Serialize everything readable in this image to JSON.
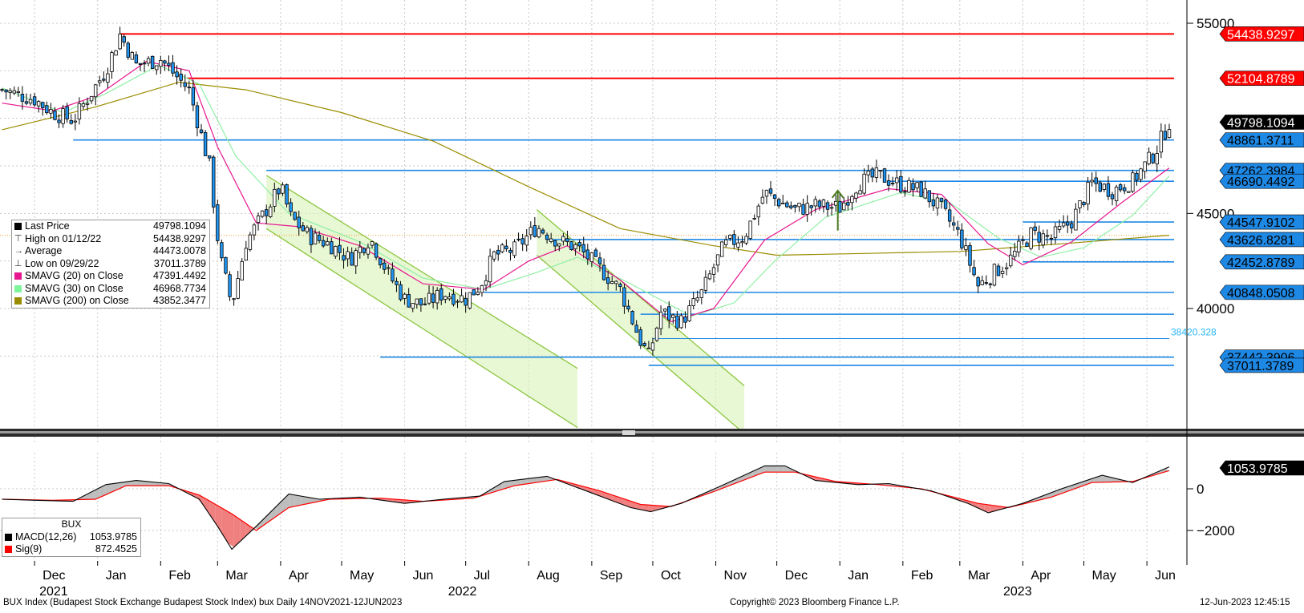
{
  "footer": {
    "description": "BUX Index (Budapest Stock Exchange Budapest Stock Index) bux  Daily 14NOV2021-12JUN2023",
    "copyright": "Copyright© 2023 Bloomberg Finance L.P.",
    "timestamp": "12-Jun-2023 12:45:15"
  },
  "legend_main": {
    "items": [
      {
        "glyph": "swatch",
        "color": "#000000",
        "label": "Last Price",
        "value": "49798.1094"
      },
      {
        "glyph": "⊤",
        "color": "#333333",
        "label": "High on 01/12/22",
        "value": "54438.9297"
      },
      {
        "glyph": "→",
        "color": "#333333",
        "label": "Average",
        "value": "44473.0078"
      },
      {
        "glyph": "⊥",
        "color": "#333333",
        "label": "Low on 09/29/22",
        "value": "37011.3789"
      },
      {
        "glyph": "swatch",
        "color": "#e6178f",
        "label": "SMAVG (20)  on Close",
        "value": "47391.4492"
      },
      {
        "glyph": "swatch",
        "color": "#7ef59a",
        "label": "SMAVG (30)  on Close",
        "value": "46968.7734"
      },
      {
        "glyph": "swatch",
        "color": "#9a8c00",
        "label": "SMAVG (200)  on Close",
        "value": "43852.3477"
      }
    ]
  },
  "legend_macd": {
    "title": "BUX",
    "items": [
      {
        "color": "#000000",
        "label": "MACD(12,26)",
        "value": "1053.9785"
      },
      {
        "color": "#ff0000",
        "label": "Sig(9)",
        "value": "872.4525"
      }
    ]
  },
  "chart_data": [
    {
      "type": "candlestick",
      "title": "BUX Index",
      "y_ticks": [
        "55000",
        "45000",
        "40000"
      ],
      "x_ticks": [
        {
          "label": "Dec",
          "date": "2021-12-01"
        },
        {
          "label": "Jan",
          "date": "2022-01-01"
        },
        {
          "label": "Feb",
          "date": "2022-02-01"
        },
        {
          "label": "Mar",
          "date": "2022-03-01"
        },
        {
          "label": "Apr",
          "date": "2022-04-01"
        },
        {
          "label": "May",
          "date": "2022-05-01"
        },
        {
          "label": "Jun",
          "date": "2022-06-01"
        },
        {
          "label": "Jul",
          "date": "2022-07-01"
        },
        {
          "label": "Aug",
          "date": "2022-08-01"
        },
        {
          "label": "Sep",
          "date": "2022-09-01"
        },
        {
          "label": "Oct",
          "date": "2022-10-01"
        },
        {
          "label": "Nov",
          "date": "2022-11-01"
        },
        {
          "label": "Dec",
          "date": "2022-12-01"
        },
        {
          "label": "Jan",
          "date": "2023-01-01"
        },
        {
          "label": "Feb",
          "date": "2023-02-01"
        },
        {
          "label": "Mar",
          "date": "2023-03-01"
        },
        {
          "label": "Apr",
          "date": "2023-04-01"
        },
        {
          "label": "May",
          "date": "2023-05-01"
        },
        {
          "label": "Jun",
          "date": "2023-06-01"
        }
      ],
      "year_labels": [
        {
          "label": "2021",
          "date": "2021-12-01"
        },
        {
          "label": "2022",
          "date": "2022-06-20"
        },
        {
          "label": "2023",
          "date": "2023-03-20"
        }
      ],
      "x_range": [
        "2021-11-14",
        "2023-06-12"
      ],
      "close_series": [
        [
          "2021-11-15",
          51500
        ],
        [
          "2021-12-01",
          51000
        ],
        [
          "2021-12-10",
          50300
        ],
        [
          "2021-12-20",
          49900
        ],
        [
          "2022-01-05",
          52500
        ],
        [
          "2022-01-12",
          54400
        ],
        [
          "2022-01-20",
          52800
        ],
        [
          "2022-02-01",
          53100
        ],
        [
          "2022-02-15",
          51500
        ],
        [
          "2022-02-25",
          47500
        ],
        [
          "2022-03-02",
          42800
        ],
        [
          "2022-03-08",
          40200
        ],
        [
          "2022-03-15",
          43500
        ],
        [
          "2022-03-25",
          45200
        ],
        [
          "2022-04-01",
          46400
        ],
        [
          "2022-04-06",
          44800
        ],
        [
          "2022-04-15",
          43800
        ],
        [
          "2022-04-25",
          43400
        ],
        [
          "2022-05-05",
          42600
        ],
        [
          "2022-05-15",
          43700
        ],
        [
          "2022-05-24",
          41800
        ],
        [
          "2022-06-01",
          40500
        ],
        [
          "2022-06-10",
          40200
        ],
        [
          "2022-06-20",
          40800
        ],
        [
          "2022-07-01",
          40500
        ],
        [
          "2022-07-08",
          41200
        ],
        [
          "2022-07-15",
          42800
        ],
        [
          "2022-07-25",
          43100
        ],
        [
          "2022-08-05",
          44300
        ],
        [
          "2022-08-15",
          43600
        ],
        [
          "2022-08-25",
          43200
        ],
        [
          "2022-09-05",
          42100
        ],
        [
          "2022-09-15",
          41000
        ],
        [
          "2022-09-25",
          38300
        ],
        [
          "2022-09-29",
          37500
        ],
        [
          "2022-10-05",
          39800
        ],
        [
          "2022-10-15",
          39300
        ],
        [
          "2022-10-25",
          40800
        ],
        [
          "2022-11-05",
          43300
        ],
        [
          "2022-11-15",
          43800
        ],
        [
          "2022-11-25",
          46100
        ],
        [
          "2022-12-01",
          45700
        ],
        [
          "2022-12-10",
          45200
        ],
        [
          "2022-12-20",
          45400
        ],
        [
          "2023-01-01",
          45300
        ],
        [
          "2023-01-10",
          46600
        ],
        [
          "2023-01-20",
          47000
        ],
        [
          "2023-01-31",
          46500
        ],
        [
          "2023-02-10",
          46200
        ],
        [
          "2023-02-20",
          45200
        ],
        [
          "2023-03-01",
          43800
        ],
        [
          "2023-03-10",
          41200
        ],
        [
          "2023-03-18",
          41900
        ],
        [
          "2023-03-25",
          42500
        ],
        [
          "2023-04-05",
          43900
        ],
        [
          "2023-04-15",
          43700
        ],
        [
          "2023-04-25",
          44600
        ],
        [
          "2023-05-05",
          46600
        ],
        [
          "2023-05-15",
          46200
        ],
        [
          "2023-05-25",
          46700
        ],
        [
          "2023-06-05",
          48200
        ],
        [
          "2023-06-12",
          49798
        ]
      ],
      "sma20": [
        [
          "2021-11-15",
          50800
        ],
        [
          "2021-12-10",
          50400
        ],
        [
          "2022-01-01",
          51200
        ],
        [
          "2022-01-25",
          53000
        ],
        [
          "2022-02-15",
          52500
        ],
        [
          "2022-03-01",
          48500
        ],
        [
          "2022-03-20",
          44500
        ],
        [
          "2022-04-10",
          44300
        ],
        [
          "2022-05-10",
          43300
        ],
        [
          "2022-06-10",
          41300
        ],
        [
          "2022-07-10",
          41000
        ],
        [
          "2022-08-01",
          42500
        ],
        [
          "2022-08-20",
          43300
        ],
        [
          "2022-09-15",
          41500
        ],
        [
          "2022-10-10",
          39300
        ],
        [
          "2022-10-31",
          40000
        ],
        [
          "2022-11-25",
          43600
        ],
        [
          "2022-12-20",
          45200
        ],
        [
          "2023-01-25",
          46300
        ],
        [
          "2023-02-20",
          46000
        ],
        [
          "2023-03-15",
          43400
        ],
        [
          "2023-04-01",
          42300
        ],
        [
          "2023-04-25",
          43500
        ],
        [
          "2023-05-20",
          45600
        ],
        [
          "2023-06-12",
          47391
        ]
      ],
      "sma30": [
        [
          "2021-11-15",
          51600
        ],
        [
          "2021-12-15",
          50300
        ],
        [
          "2022-01-05",
          51300
        ],
        [
          "2022-01-31",
          52800
        ],
        [
          "2022-02-20",
          51800
        ],
        [
          "2022-03-10",
          48000
        ],
        [
          "2022-04-05",
          45000
        ],
        [
          "2022-05-10",
          43500
        ],
        [
          "2022-06-10",
          41600
        ],
        [
          "2022-07-10",
          41000
        ],
        [
          "2022-08-05",
          41900
        ],
        [
          "2022-08-25",
          42700
        ],
        [
          "2022-09-20",
          41300
        ],
        [
          "2022-10-20",
          39600
        ],
        [
          "2022-11-10",
          40300
        ],
        [
          "2022-11-30",
          42500
        ],
        [
          "2022-12-25",
          44800
        ],
        [
          "2023-01-31",
          46100
        ],
        [
          "2023-02-25",
          45500
        ],
        [
          "2023-03-20",
          43700
        ],
        [
          "2023-04-10",
          42700
        ],
        [
          "2023-05-01",
          43200
        ],
        [
          "2023-05-25",
          44900
        ],
        [
          "2023-06-12",
          46969
        ]
      ],
      "sma200": [
        [
          "2021-11-15",
          49400
        ],
        [
          "2021-12-31",
          50600
        ],
        [
          "2022-02-10",
          51900
        ],
        [
          "2022-03-15",
          51500
        ],
        [
          "2022-05-01",
          50300
        ],
        [
          "2022-06-15",
          48800
        ],
        [
          "2022-08-01",
          46400
        ],
        [
          "2022-09-15",
          44200
        ],
        [
          "2022-10-31",
          43300
        ],
        [
          "2022-12-01",
          42800
        ],
        [
          "2023-01-15",
          42900
        ],
        [
          "2023-03-01",
          43000
        ],
        [
          "2023-04-20",
          43400
        ],
        [
          "2023-06-12",
          43852
        ]
      ],
      "horizontal_levels": [
        {
          "value": 54438.9297,
          "label": "54438.9297",
          "color": "#ff0000",
          "from": "2022-01-12"
        },
        {
          "value": 52104.8789,
          "label": "52104.8789",
          "color": "#ff0000",
          "from": "2022-02-14"
        },
        {
          "value": 48861.3711,
          "label": "48861.3711",
          "color": "#1e88e5",
          "from": "2021-12-20"
        },
        {
          "value": 47262.3984,
          "label": "47262.3984",
          "color": "#1e88e5",
          "from": "2022-03-25"
        },
        {
          "value": 46690.4492,
          "label": "46690.4492",
          "color": "#1e88e5",
          "from": "2023-01-25"
        },
        {
          "value": 44547.9102,
          "label": "44547.9102",
          "color": "#1e88e5",
          "from": "2023-04-01"
        },
        {
          "value": 43626.8281,
          "label": "43626.8281",
          "color": "#1e88e5",
          "from": "2022-08-10"
        },
        {
          "value": 42452.8789,
          "label": "42452.8789",
          "color": "#1e88e5",
          "from": "2023-04-01"
        },
        {
          "value": 40848.0508,
          "label": "40848.0508",
          "color": "#1e88e5",
          "from": "2022-07-10"
        },
        {
          "value": 39700,
          "label": "",
          "color": "#1e88e5",
          "from": "2022-09-25"
        },
        {
          "value": 38420.328,
          "label": "38420.328",
          "color": "#1e88e5",
          "from": "2022-10-01",
          "style": "plain"
        },
        {
          "value": 37442.3906,
          "label": "37442.3906",
          "color": "#1e88e5",
          "from": "2022-05-20"
        },
        {
          "value": 37011.3789,
          "label": "37011.3789",
          "color": "#1e88e5",
          "from": "2022-09-29"
        }
      ],
      "last_price": {
        "value": 49798.1094,
        "label": "49798.1094"
      },
      "channels": [
        {
          "upper": [
            [
              "2022-03-25",
              47000
            ],
            [
              "2022-07-01",
              40500
            ]
          ],
          "lower": [
            [
              "2022-03-25",
              44200
            ],
            [
              "2022-07-01",
              37500
            ]
          ],
          "extend_to": "2022-08-25"
        },
        {
          "upper": [
            [
              "2022-08-05",
              45200
            ],
            [
              "2022-10-31",
              37300
            ]
          ],
          "lower": [
            [
              "2022-08-05",
              42800
            ],
            [
              "2022-10-31",
              34800
            ]
          ],
          "extend_to": "2022-11-15"
        }
      ],
      "arrow": {
        "date": "2022-12-31",
        "from": 44100,
        "to": 46200,
        "color": "#4a7a1f"
      }
    },
    {
      "type": "line",
      "title": "MACD",
      "y_ticks": [
        "0",
        "-2000"
      ],
      "macd": [
        [
          "2021-11-15",
          -500
        ],
        [
          "2021-12-01",
          -550
        ],
        [
          "2021-12-20",
          -600
        ],
        [
          "2022-01-05",
          200
        ],
        [
          "2022-01-20",
          400
        ],
        [
          "2022-02-05",
          250
        ],
        [
          "2022-02-20",
          -500
        ],
        [
          "2022-03-01",
          -1800
        ],
        [
          "2022-03-08",
          -2900
        ],
        [
          "2022-03-20",
          -1800
        ],
        [
          "2022-04-05",
          -250
        ],
        [
          "2022-04-20",
          -500
        ],
        [
          "2022-05-10",
          -400
        ],
        [
          "2022-06-01",
          -700
        ],
        [
          "2022-06-20",
          -500
        ],
        [
          "2022-07-08",
          -350
        ],
        [
          "2022-07-20",
          350
        ],
        [
          "2022-08-10",
          600
        ],
        [
          "2022-09-01",
          -200
        ],
        [
          "2022-09-20",
          -900
        ],
        [
          "2022-09-30",
          -1100
        ],
        [
          "2022-10-15",
          -700
        ],
        [
          "2022-11-05",
          200
        ],
        [
          "2022-11-25",
          1100
        ],
        [
          "2022-12-05",
          1100
        ],
        [
          "2022-12-20",
          400
        ],
        [
          "2023-01-10",
          200
        ],
        [
          "2023-01-25",
          250
        ],
        [
          "2023-02-15",
          -100
        ],
        [
          "2023-03-05",
          -700
        ],
        [
          "2023-03-15",
          -1150
        ],
        [
          "2023-04-01",
          -700
        ],
        [
          "2023-04-20",
          0
        ],
        [
          "2023-05-10",
          650
        ],
        [
          "2023-05-25",
          300
        ],
        [
          "2023-06-12",
          1054
        ]
      ],
      "signal": [
        [
          "2021-11-15",
          -500
        ],
        [
          "2021-12-10",
          -550
        ],
        [
          "2021-12-31",
          -500
        ],
        [
          "2022-01-15",
          150
        ],
        [
          "2022-02-05",
          150
        ],
        [
          "2022-02-20",
          -300
        ],
        [
          "2022-03-08",
          -1200
        ],
        [
          "2022-03-20",
          -2000
        ],
        [
          "2022-04-05",
          -900
        ],
        [
          "2022-04-25",
          -500
        ],
        [
          "2022-05-20",
          -450
        ],
        [
          "2022-06-10",
          -600
        ],
        [
          "2022-07-05",
          -450
        ],
        [
          "2022-07-25",
          150
        ],
        [
          "2022-08-15",
          450
        ],
        [
          "2022-09-05",
          -100
        ],
        [
          "2022-09-25",
          -750
        ],
        [
          "2022-10-10",
          -850
        ],
        [
          "2022-11-01",
          -100
        ],
        [
          "2022-11-25",
          800
        ],
        [
          "2022-12-10",
          800
        ],
        [
          "2022-12-30",
          350
        ],
        [
          "2023-01-20",
          200
        ],
        [
          "2023-02-10",
          0
        ],
        [
          "2023-03-10",
          -700
        ],
        [
          "2023-03-25",
          -900
        ],
        [
          "2023-04-15",
          -400
        ],
        [
          "2023-05-05",
          300
        ],
        [
          "2023-05-25",
          350
        ],
        [
          "2023-06-12",
          872
        ]
      ],
      "last_macd": {
        "value": 1053.9785,
        "label": "1053.9785"
      }
    }
  ]
}
